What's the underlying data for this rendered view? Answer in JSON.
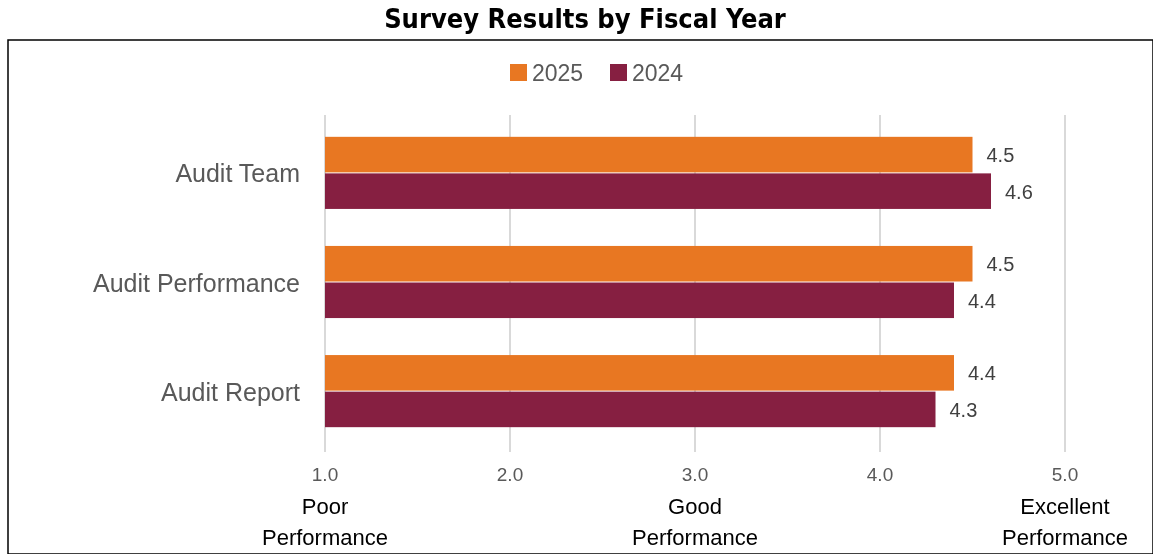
{
  "chart_data": {
    "type": "bar",
    "orientation": "horizontal",
    "title": "Survey Results by Fiscal Year",
    "categories": [
      "Audit Team",
      "Audit Performance",
      "Audit Report"
    ],
    "series": [
      {
        "name": "2025",
        "color": "#e87722",
        "values": [
          4.5,
          4.5,
          4.4
        ]
      },
      {
        "name": "2024",
        "color": "#861f41",
        "values": [
          4.6,
          4.4,
          4.3
        ]
      }
    ],
    "xlim": [
      1,
      5
    ],
    "xticks": [
      {
        "value": 1,
        "label": "1.0"
      },
      {
        "value": 2,
        "label": "2.0"
      },
      {
        "value": 3,
        "label": "3.0"
      },
      {
        "value": 4,
        "label": "4.0"
      },
      {
        "value": 5,
        "label": "5.0"
      }
    ],
    "grid": "x",
    "legend": "top",
    "data_labels": true,
    "annotations": [
      "Poor Performance",
      "Good Performance",
      "Excellent Performance"
    ]
  }
}
